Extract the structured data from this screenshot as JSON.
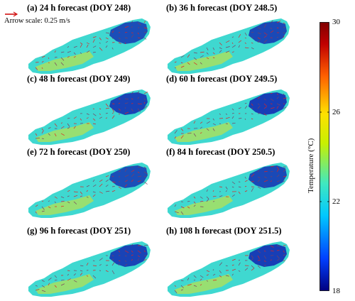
{
  "panels": [
    {
      "title": "(a) 24 h forecast (DOY 248)"
    },
    {
      "title": "(b) 36 h forecast (DOY 248.5)"
    },
    {
      "title": "(c) 48 h forecast (DOY 249)"
    },
    {
      "title": "(d) 60 h forecast (DOY 249.5)"
    },
    {
      "title": "(e) 72 h forecast (DOY 250)"
    },
    {
      "title": "(f) 84 h forecast (DOY 250.5)"
    },
    {
      "title": "(g) 96 h forecast (DOY 251)"
    },
    {
      "title": "(h) 108 h forecast (DOY 251.5)"
    }
  ],
  "arrow_scale_label": "Arrow scale: 0.25 m/s",
  "colorbar": {
    "label": "Temperature (°C)",
    "ticks": [
      "30",
      "26",
      "22",
      "18"
    ],
    "range": [
      18,
      30
    ],
    "colors": [
      "#000080",
      "#0040ff",
      "#00c8ff",
      "#40e8c0",
      "#c8f000",
      "#ffe000",
      "#ff6000",
      "#c00000",
      "#800000"
    ]
  },
  "colors": {
    "lake_main": "#3fd8d0",
    "lake_warm": "#a8e060",
    "lake_cold": "#1020b0",
    "arrow": "#e02020",
    "arrow_scale": "#d01010"
  }
}
